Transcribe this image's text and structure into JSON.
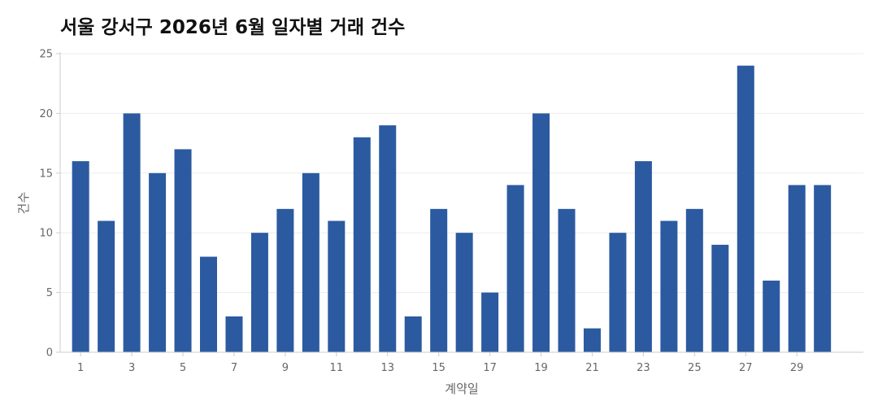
{
  "chart_data": {
    "type": "bar",
    "title": "서울 강서구 2026년 6월 일자별 거래 건수",
    "xlabel": "계약일",
    "ylabel": "건수",
    "x": [
      1,
      2,
      3,
      4,
      5,
      6,
      7,
      8,
      9,
      10,
      11,
      12,
      13,
      14,
      15,
      16,
      17,
      18,
      19,
      20,
      21,
      22,
      23,
      24,
      25,
      26,
      27,
      28,
      29,
      30
    ],
    "values": [
      16,
      11,
      20,
      15,
      17,
      8,
      3,
      10,
      12,
      15,
      11,
      18,
      19,
      3,
      12,
      10,
      5,
      14,
      20,
      12,
      2,
      10,
      16,
      11,
      12,
      9,
      24,
      6,
      14,
      14
    ],
    "xticks": [
      "1",
      "3",
      "5",
      "7",
      "9",
      "11",
      "13",
      "15",
      "17",
      "19",
      "21",
      "23",
      "25",
      "27",
      "29"
    ],
    "yticks": [
      "0",
      "5",
      "10",
      "15",
      "20",
      "25"
    ],
    "ylim": [
      0,
      25
    ],
    "xlim": [
      0.2,
      31.6
    ],
    "grid": "horizontal",
    "legend": "none",
    "bar_color": "#2b5aa0"
  }
}
